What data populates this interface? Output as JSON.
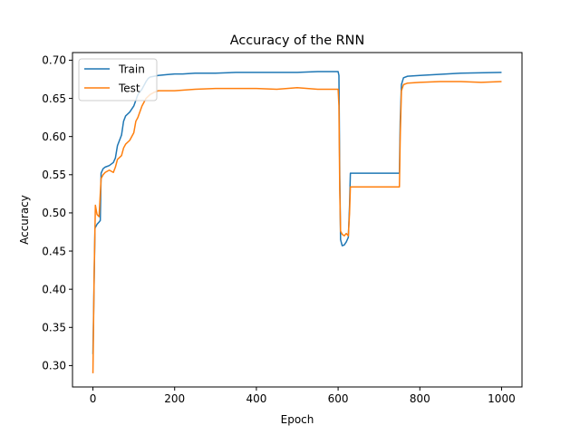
{
  "chart_data": {
    "type": "line",
    "title": "Accuracy of the RNN",
    "xlabel": "Epoch",
    "ylabel": "Accuracy",
    "xlim": [
      -50,
      1050
    ],
    "ylim": [
      0.272,
      0.71
    ],
    "x_ticks": [
      0,
      200,
      400,
      600,
      800,
      1000
    ],
    "x_tick_labels": [
      "0",
      "200",
      "400",
      "600",
      "800",
      "1000"
    ],
    "y_ticks": [
      0.3,
      0.35,
      0.4,
      0.45,
      0.5,
      0.55,
      0.6,
      0.65,
      0.7
    ],
    "y_tick_labels": [
      "0.30",
      "0.35",
      "0.40",
      "0.45",
      "0.50",
      "0.55",
      "0.60",
      "0.65",
      "0.70"
    ],
    "grid": false,
    "legend_position": "top-left",
    "series": [
      {
        "name": "Train",
        "color": "#1f77b4",
        "x": [
          0,
          2,
          5,
          10,
          15,
          18,
          20,
          25,
          30,
          40,
          50,
          55,
          60,
          70,
          75,
          80,
          90,
          100,
          110,
          120,
          130,
          135,
          140,
          150,
          160,
          180,
          200,
          220,
          250,
          300,
          350,
          400,
          450,
          500,
          550,
          600,
          602,
          604,
          606,
          610,
          615,
          620,
          625,
          628,
          630,
          700,
          750,
          752,
          755,
          760,
          770,
          800,
          900,
          1000
        ],
        "y": [
          0.315,
          0.38,
          0.48,
          0.485,
          0.488,
          0.49,
          0.552,
          0.558,
          0.56,
          0.562,
          0.566,
          0.572,
          0.588,
          0.602,
          0.62,
          0.627,
          0.632,
          0.64,
          0.655,
          0.662,
          0.672,
          0.676,
          0.678,
          0.679,
          0.68,
          0.681,
          0.682,
          0.682,
          0.683,
          0.683,
          0.684,
          0.684,
          0.684,
          0.684,
          0.685,
          0.685,
          0.68,
          0.55,
          0.465,
          0.457,
          0.458,
          0.462,
          0.468,
          0.51,
          0.552,
          0.552,
          0.552,
          0.62,
          0.668,
          0.677,
          0.679,
          0.68,
          0.683,
          0.684
        ]
      },
      {
        "name": "Test",
        "color": "#ff7f0e",
        "x": [
          0,
          3,
          6,
          10,
          15,
          20,
          25,
          30,
          40,
          50,
          55,
          60,
          70,
          75,
          80,
          90,
          100,
          105,
          110,
          120,
          125,
          130,
          140,
          150,
          160,
          200,
          250,
          300,
          350,
          400,
          450,
          500,
          550,
          600,
          602,
          604,
          606,
          610,
          615,
          620,
          625,
          628,
          630,
          700,
          750,
          752,
          755,
          760,
          770,
          800,
          850,
          900,
          950,
          1000
        ],
        "y": [
          0.29,
          0.42,
          0.51,
          0.498,
          0.495,
          0.545,
          0.55,
          0.553,
          0.556,
          0.553,
          0.56,
          0.57,
          0.575,
          0.585,
          0.59,
          0.595,
          0.605,
          0.62,
          0.625,
          0.64,
          0.645,
          0.65,
          0.655,
          0.658,
          0.66,
          0.66,
          0.662,
          0.663,
          0.663,
          0.663,
          0.662,
          0.664,
          0.662,
          0.662,
          0.64,
          0.53,
          0.476,
          0.472,
          0.47,
          0.473,
          0.47,
          0.5,
          0.534,
          0.534,
          0.534,
          0.6,
          0.66,
          0.668,
          0.67,
          0.671,
          0.672,
          0.672,
          0.671,
          0.672
        ]
      }
    ]
  }
}
